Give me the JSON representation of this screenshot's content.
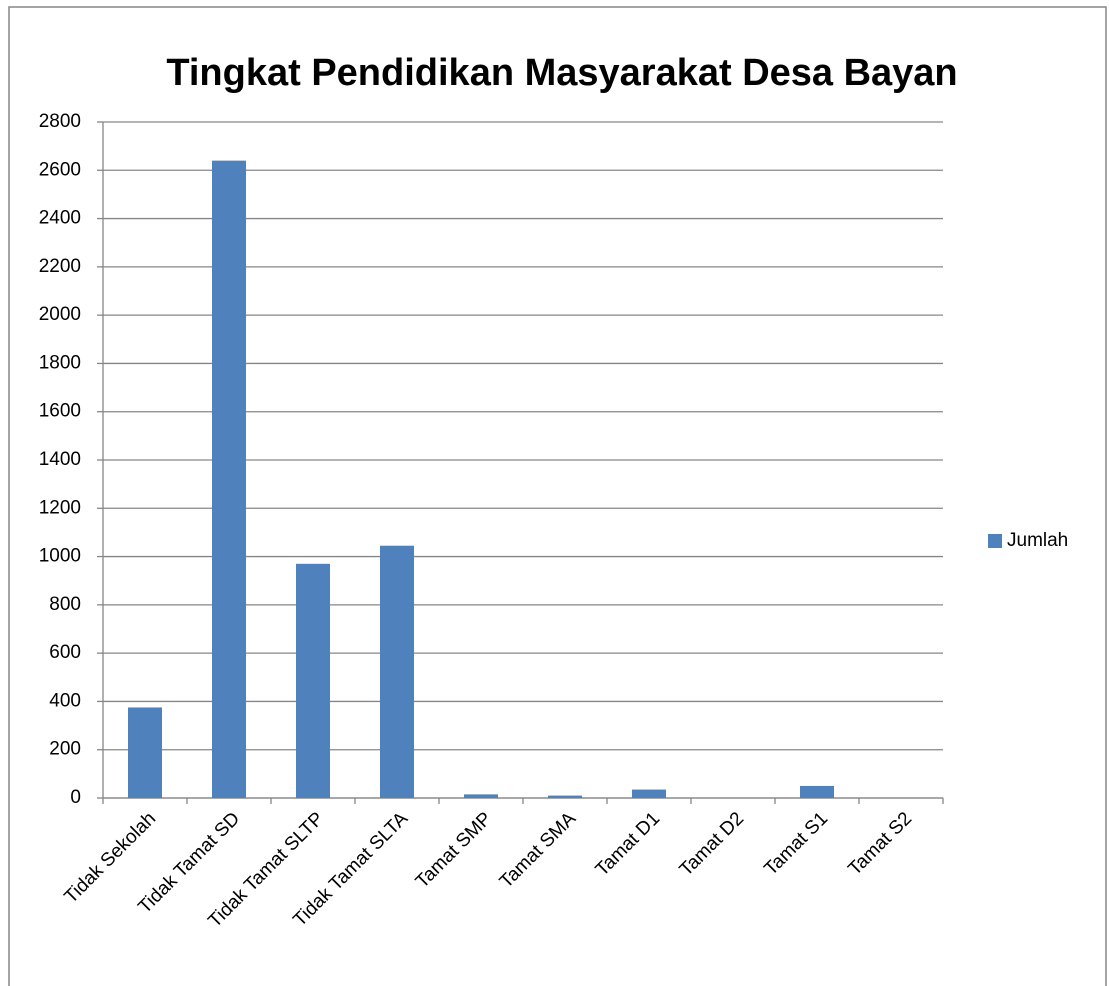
{
  "chart_data": {
    "type": "bar",
    "title": "Tingkat Pendidikan Masyarakat Desa Bayan",
    "categories": [
      "Tidak Sekolah",
      "Tidak Tamat SD",
      "Tidak Tamat SLTP",
      "Tidak Tamat SLTA",
      "Tamat SMP",
      "Tamat SMA",
      "Tamat D1",
      "Tamat D2",
      "Tamat S1",
      "Tamat S2"
    ],
    "series": [
      {
        "name": "Jumlah",
        "color": "#4f81bd",
        "values": [
          375,
          2640,
          970,
          1045,
          15,
          10,
          35,
          0,
          50,
          0
        ]
      }
    ],
    "ylim": [
      0,
      2800
    ],
    "yticks": [
      0,
      200,
      400,
      600,
      800,
      1000,
      1200,
      1400,
      1600,
      1800,
      2000,
      2200,
      2400,
      2600,
      2800
    ],
    "grid": true,
    "legend": "right"
  }
}
